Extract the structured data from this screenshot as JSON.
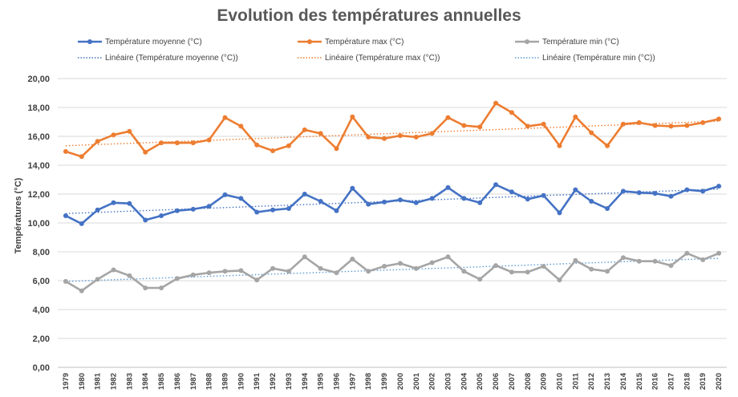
{
  "chart_data": {
    "type": "line",
    "title": "Evolution des températures annuelles",
    "ylabel": "Températures (°C)",
    "xlabel": "",
    "ylim": [
      0,
      20
    ],
    "ytick_labels": [
      "0,00",
      "2,00",
      "4,00",
      "6,00",
      "8,00",
      "10,00",
      "12,00",
      "14,00",
      "16,00",
      "18,00",
      "20,00"
    ],
    "grid": "horizontal",
    "legend_position": "top",
    "x": [
      "1979",
      "1980",
      "1981",
      "1982",
      "1983",
      "1984",
      "1985",
      "1986",
      "1987",
      "1988",
      "1989",
      "1990",
      "1991",
      "1992",
      "1993",
      "1994",
      "1995",
      "1996",
      "1997",
      "1998",
      "1999",
      "2000",
      "2001",
      "2002",
      "2003",
      "2004",
      "2005",
      "2006",
      "2007",
      "2008",
      "2009",
      "2010",
      "2011",
      "2012",
      "2013",
      "2014",
      "2015",
      "2016",
      "2017",
      "2018",
      "2019",
      "2020"
    ],
    "series": [
      {
        "name": "Température moyenne (°C)",
        "color": "#4472c4",
        "values": [
          10.5,
          9.95,
          10.9,
          11.4,
          11.35,
          10.2,
          10.5,
          10.85,
          10.95,
          11.15,
          11.95,
          11.7,
          10.75,
          10.9,
          11.0,
          12.0,
          11.5,
          10.85,
          12.4,
          11.3,
          11.45,
          11.6,
          11.4,
          11.7,
          12.45,
          11.7,
          11.4,
          12.65,
          12.15,
          11.65,
          11.9,
          10.7,
          12.3,
          11.5,
          11.0,
          12.2,
          12.1,
          12.05,
          11.85,
          12.3,
          12.2,
          12.55
        ]
      },
      {
        "name": "Température max (°C)",
        "color": "#ed7d31",
        "values": [
          14.95,
          14.6,
          15.65,
          16.1,
          16.35,
          14.9,
          15.55,
          15.55,
          15.55,
          15.75,
          17.3,
          16.7,
          15.4,
          15.0,
          15.35,
          16.45,
          16.2,
          15.15,
          17.35,
          15.95,
          15.85,
          16.05,
          15.95,
          16.2,
          17.3,
          16.75,
          16.65,
          18.3,
          17.65,
          16.7,
          16.85,
          15.35,
          17.35,
          16.25,
          15.35,
          16.85,
          16.95,
          16.75,
          16.7,
          16.75,
          16.95,
          17.2
        ]
      },
      {
        "name": "Température min (°C)",
        "color": "#a5a5a5",
        "values": [
          5.95,
          5.3,
          6.1,
          6.75,
          6.35,
          5.5,
          5.5,
          6.15,
          6.4,
          6.55,
          6.65,
          6.7,
          6.05,
          6.85,
          6.65,
          7.65,
          6.85,
          6.55,
          7.5,
          6.65,
          7.0,
          7.2,
          6.85,
          7.25,
          7.65,
          6.65,
          6.1,
          7.05,
          6.6,
          6.6,
          7.0,
          6.05,
          7.4,
          6.8,
          6.65,
          7.6,
          7.35,
          7.35,
          7.05,
          7.9,
          7.45,
          7.9
        ]
      }
    ],
    "trendlines": [
      {
        "name": "Linéaire (Température moyenne (°C))",
        "color": "#4472c4",
        "from": 10.65,
        "to": 12.35
      },
      {
        "name": "Linéaire (Température max (°C))",
        "color": "#ed7d31",
        "from": 15.35,
        "to": 17.05
      },
      {
        "name": "Linéaire (Température min (°C))",
        "color": "#5b9bd5",
        "from": 5.95,
        "to": 7.55
      }
    ]
  }
}
